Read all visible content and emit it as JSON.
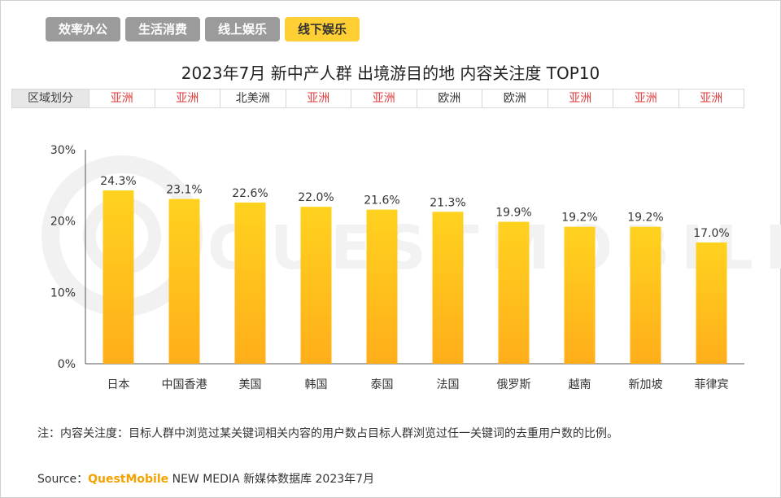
{
  "tabs": [
    {
      "label": "效率办公",
      "active": false
    },
    {
      "label": "生活消费",
      "active": false
    },
    {
      "label": "线上娱乐",
      "active": false
    },
    {
      "label": "线下娱乐",
      "active": true
    }
  ],
  "region_row": {
    "header": "区域划分",
    "values": [
      "亚洲",
      "亚洲",
      "北美洲",
      "亚洲",
      "亚洲",
      "欧洲",
      "欧洲",
      "亚洲",
      "亚洲",
      "亚洲"
    ]
  },
  "watermark": "QUESTMOBILE",
  "note": "注：内容关注度：目标人群中浏览过某关键词相关内容的用户数占目标人群浏览过任一关键词的去重用户数的比例。",
  "source": {
    "prefix": "Source：",
    "brand": "QuestMobile",
    "suffix": " NEW MEDIA 新媒体数据库 2023年7月"
  },
  "colors": {
    "bar_top": "#ffd21f",
    "bar_bottom": "#ffae1a",
    "asia": "#e03c3c",
    "tab_active": "#ffcf33",
    "tab": "#9b9b9b"
  },
  "chart_data": {
    "type": "bar",
    "title": "2023年7月 新中产人群 出境游目的地 内容关注度 TOP10",
    "categories": [
      "日本",
      "中国香港",
      "美国",
      "韩国",
      "泰国",
      "法国",
      "俄罗斯",
      "越南",
      "新加坡",
      "菲律宾"
    ],
    "values": [
      24.3,
      23.1,
      22.6,
      22.0,
      21.6,
      21.3,
      19.9,
      19.2,
      19.2,
      17.0
    ],
    "data_labels": [
      "24.3%",
      "23.1%",
      "22.6%",
      "22.0%",
      "21.6%",
      "21.3%",
      "19.9%",
      "19.2%",
      "19.2%",
      "17.0%"
    ],
    "yticks": [
      "0%",
      "10%",
      "20%",
      "30%"
    ],
    "ylim": [
      0,
      30
    ],
    "grid": false,
    "legend": "none"
  }
}
